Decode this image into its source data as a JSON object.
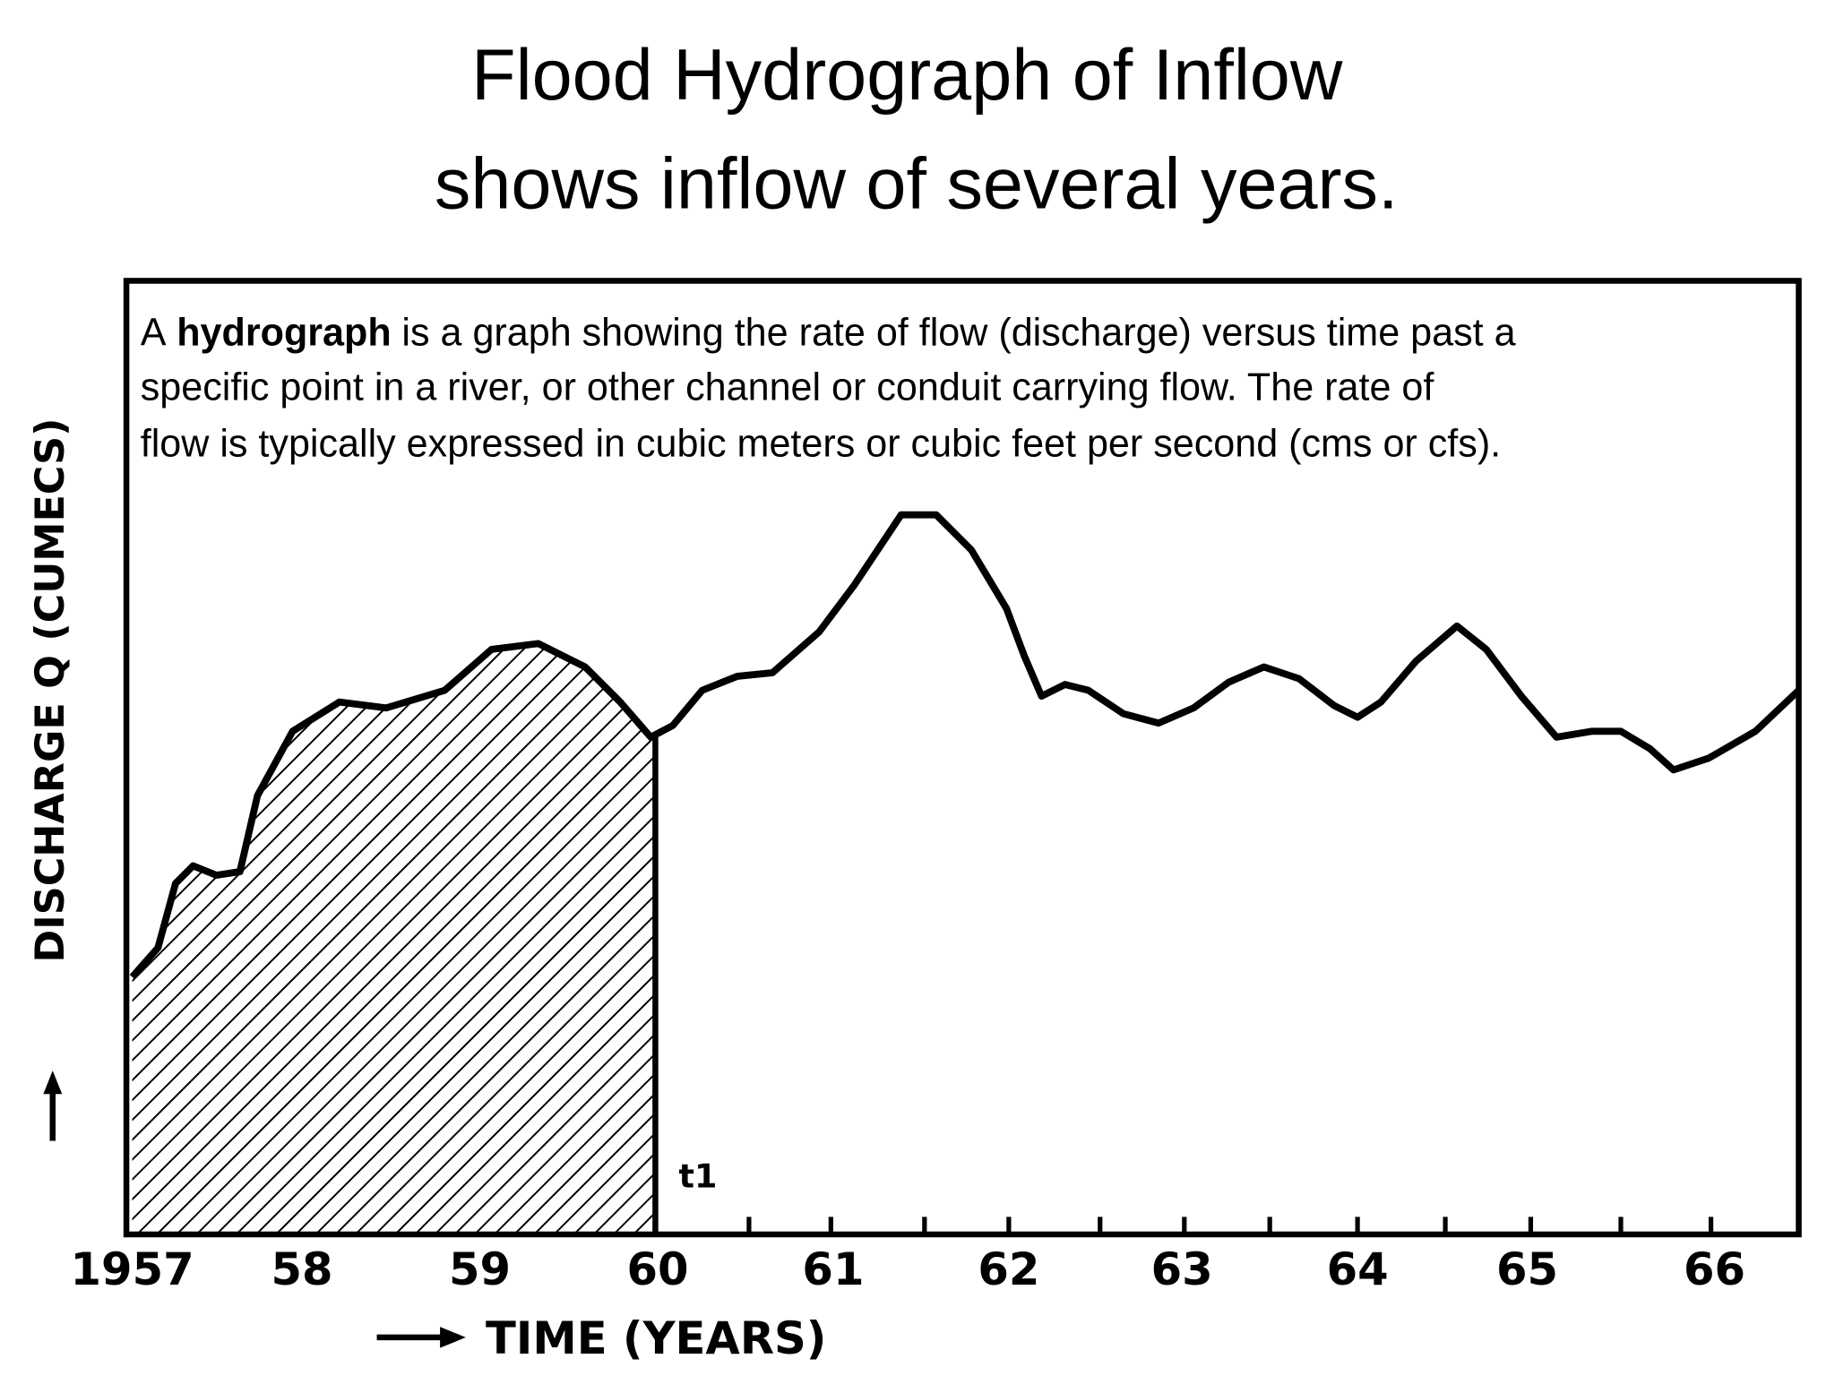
{
  "slide": {
    "title": [
      "Flood Hydrograph of Inflow",
      "shows inflow of several years."
    ],
    "description": {
      "lead": "A",
      "term": "hydrograph",
      "lines": [
        "is a graph showing the rate of flow (discharge) versus time past a",
        "specific point in a river, or other channel or conduit carrying flow. The rate of",
        "flow is typically expressed in cubic meters or cubic feet per second (cms or cfs)."
      ]
    }
  },
  "figure": {
    "y_label": "DISCHARGE Q (CUMECS)",
    "x_label": "TIME (YEARS)",
    "x_tick_labels": [
      "1957",
      "58",
      "59",
      "60",
      "61",
      "62",
      "63",
      "64",
      "65",
      "66"
    ],
    "marker_label": "t1"
  }
}
